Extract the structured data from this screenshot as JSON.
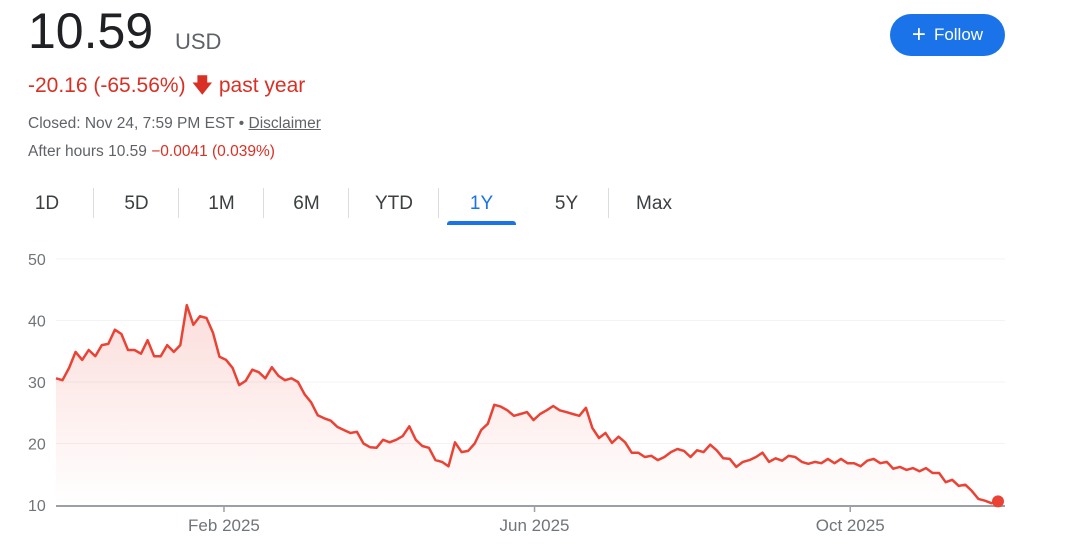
{
  "header": {
    "price": "10.59",
    "currency": "USD",
    "change": "-20.16 (-65.56%)",
    "change_arrow_icon": "arrow-down-icon",
    "change_period": "past year",
    "closed": "Closed: Nov 24, 7:59 PM EST •",
    "disclaimer": "Disclaimer",
    "after_hours_label": "After hours 10.59",
    "after_hours_change": "−0.0041 (0.039%)"
  },
  "follow_button": {
    "icon": "plus-icon",
    "label": "Follow"
  },
  "tabs": [
    {
      "label": "1D"
    },
    {
      "label": "5D"
    },
    {
      "label": "1M"
    },
    {
      "label": "6M"
    },
    {
      "label": "YTD"
    },
    {
      "label": "1Y",
      "active": true
    },
    {
      "label": "5Y"
    },
    {
      "label": "Max"
    }
  ],
  "colors": {
    "line": "#ea4335",
    "accent": "#1a73e8",
    "negative": "#d93025"
  },
  "chart_data": {
    "type": "area",
    "xlim": [
      "2024-11-25",
      "2025-11-24"
    ],
    "ylim": [
      10,
      50
    ],
    "yticks": [
      10,
      20,
      30,
      40,
      50
    ],
    "xticks": [
      {
        "date": "2025-02-01",
        "label": "Feb 2025"
      },
      {
        "date": "2025-06-01",
        "label": "Jun 2025"
      },
      {
        "date": "2025-10-01",
        "label": "Oct 2025"
      }
    ],
    "grid": true,
    "last_value": 10.59,
    "values": [
      30.6,
      30.3,
      32.3,
      34.9,
      33.6,
      35.2,
      34.2,
      36,
      36.2,
      38.5,
      37.8,
      35.2,
      35.2,
      34.6,
      36.8,
      34.2,
      34.2,
      36,
      34.9,
      36,
      42.5,
      39.3,
      40.7,
      40.4,
      38,
      34.1,
      33.6,
      32.3,
      29.5,
      30.2,
      32,
      31.6,
      30.6,
      32.4,
      31,
      30.3,
      30.6,
      30,
      28,
      26.7,
      24.6,
      24.1,
      23.7,
      22.7,
      22.2,
      21.7,
      21.9,
      20,
      19.4,
      19.3,
      20.6,
      20.2,
      20.6,
      21.2,
      22.8,
      20.6,
      19.6,
      19.3,
      17.3,
      17,
      16.3,
      20.2,
      18.6,
      18.8,
      20,
      22.2,
      23.2,
      26.3,
      26,
      25.4,
      24.5,
      24.8,
      25.1,
      23.8,
      24.8,
      25.4,
      26.1,
      25.4,
      25.1,
      24.8,
      24.5,
      25.8,
      22.5,
      20.9,
      21.7,
      20.1,
      21.1,
      20.2,
      18.5,
      18.5,
      17.8,
      18,
      17.3,
      17.8,
      18.6,
      19.1,
      18.8,
      17.8,
      18.9,
      18.6,
      19.8,
      18.9,
      17.6,
      17.5,
      16.2,
      17,
      17.3,
      17.8,
      18.5,
      17,
      17.6,
      17.2,
      18,
      17.8,
      17,
      16.7,
      17,
      16.8,
      17.5,
      16.8,
      17.5,
      16.8,
      16.8,
      16.3,
      17.2,
      17.5,
      16.8,
      17,
      15.9,
      16.2,
      15.7,
      16,
      15.5,
      16,
      15.2,
      15.2,
      13.7,
      14.1,
      13.1,
      13.3,
      12.3,
      11,
      10.7,
      10.3,
      10.59
    ]
  }
}
